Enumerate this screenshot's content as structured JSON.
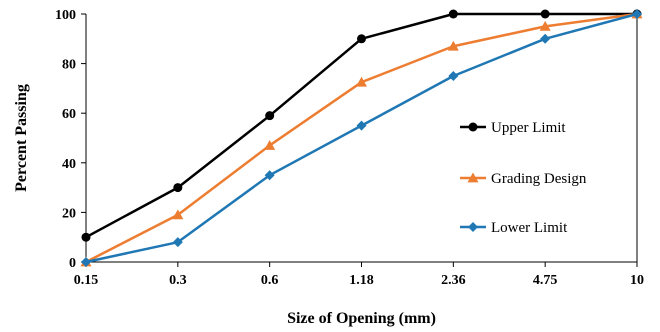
{
  "chart_data": {
    "type": "line",
    "title": "",
    "xlabel": "Size of Opening (mm)",
    "ylabel": "Percent Passing",
    "categories": [
      "0.15",
      "0.3",
      "0.6",
      "1.18",
      "2.36",
      "4.75",
      "10"
    ],
    "ylim": [
      0,
      100
    ],
    "yticks": [
      0,
      20,
      40,
      60,
      80,
      100
    ],
    "grid": false,
    "legend_position": "right",
    "series": [
      {
        "name": "Upper Limit",
        "values": [
          10,
          30,
          59,
          90,
          100,
          100,
          100
        ],
        "color": "#000000",
        "marker": "circle"
      },
      {
        "name": "Grading Design",
        "values": [
          0,
          19,
          47,
          72.5,
          87,
          95,
          100
        ],
        "color": "#ED7D31",
        "marker": "triangle"
      },
      {
        "name": "Lower Limit",
        "values": [
          0,
          8,
          35,
          55,
          75,
          90,
          100
        ],
        "color": "#1F77B4",
        "marker": "diamond"
      }
    ]
  }
}
